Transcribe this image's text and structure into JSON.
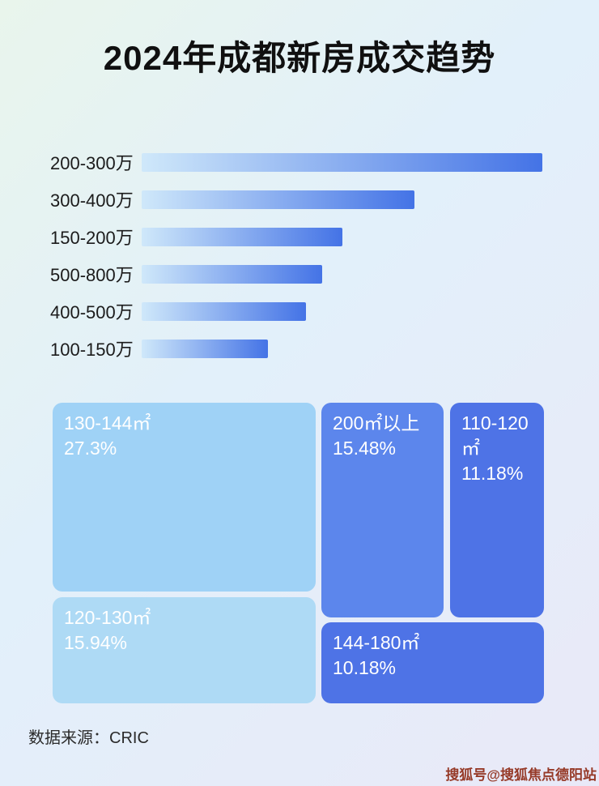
{
  "page": {
    "title": "2024年成都新房成交趋势",
    "source_label": "数据来源：CRIC",
    "watermark": "搜狐号@搜狐焦点德阳站"
  },
  "colors": {
    "background_start": "#e9f5ec",
    "background_end": "#e9e9f8",
    "bar_gradient_start": "#cfe8fa",
    "bar_gradient_end": "#4473e6",
    "title_text": "#101010",
    "treemap_text": "#ffffff"
  },
  "chart_data": [
    {
      "type": "bar",
      "orientation": "horizontal",
      "title": "2024年成都新房成交趋势",
      "categories": [
        "200-300万",
        "300-400万",
        "150-200万",
        "500-800万",
        "400-500万",
        "100-150万"
      ],
      "values": [
        100,
        68,
        50,
        45,
        41,
        31.5
      ],
      "value_unit": "relative-width-percent-of-longest-bar",
      "xlabel": "",
      "ylabel": ""
    },
    {
      "type": "treemap",
      "title": "",
      "items": [
        {
          "label": "130-144㎡",
          "percent": "27.3%",
          "value": 27.3,
          "color": "#9fd2f6"
        },
        {
          "label": "200㎡以上",
          "percent": "15.48%",
          "value": 15.48,
          "color": "#5c86ec"
        },
        {
          "label": "110-120㎡",
          "percent": "11.18%",
          "value": 11.18,
          "color": "#4e73e6"
        },
        {
          "label": "120-130㎡",
          "percent": "15.94%",
          "value": 15.94,
          "color": "#aedaf5"
        },
        {
          "label": "144-180㎡",
          "percent": "10.18%",
          "value": 10.18,
          "color": "#4e73e6"
        }
      ]
    }
  ]
}
